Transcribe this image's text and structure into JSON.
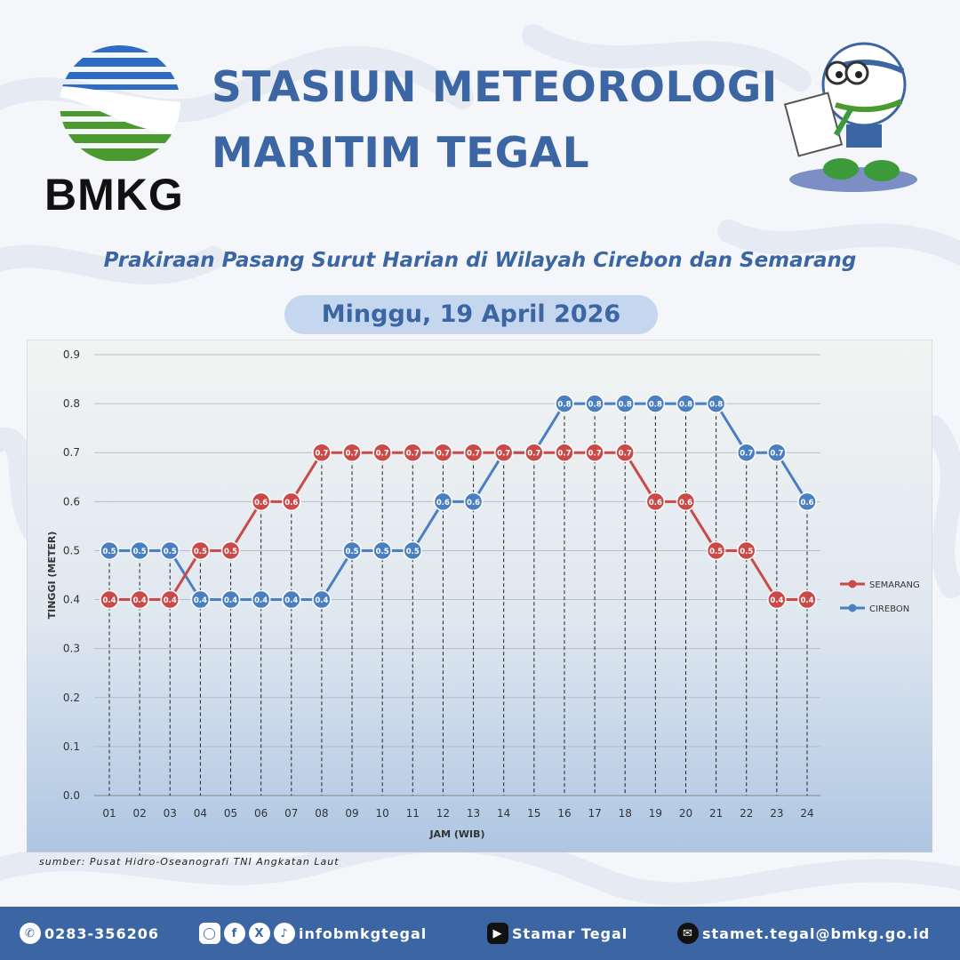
{
  "header": {
    "title_line1": "STASIUN METEOROLOGI",
    "title_line2": "MARITIM TEGAL",
    "logo_text": "BMKG"
  },
  "subtitle": "Prakiraan Pasang Surut Harian di Wilayah Cirebon dan Semarang",
  "date": "Minggu, 19 April 2026",
  "source": "sumber: Pusat Hidro-Oseanografi TNI Angkatan Laut",
  "footer": {
    "phone": "0283-356206",
    "social": "infobmkgtegal",
    "youtube": "Stamar Tegal",
    "email": "stamet.tegal@bmkg.go.id"
  },
  "colors": {
    "semarang": "#c94a48",
    "cirebon": "#4a7fc1",
    "brand": "#3b66a3"
  },
  "chart_data": {
    "type": "line",
    "xlabel": "JAM (WIB)",
    "ylabel": "TINGGI (METER)",
    "ylim": [
      0,
      0.9
    ],
    "yticks": [
      "0.0",
      "0.1",
      "0.2",
      "0.3",
      "0.4",
      "0.5",
      "0.6",
      "0.7",
      "0.8",
      "0.9"
    ],
    "categories": [
      "01",
      "02",
      "03",
      "04",
      "05",
      "06",
      "07",
      "08",
      "09",
      "10",
      "11",
      "12",
      "13",
      "14",
      "15",
      "16",
      "17",
      "18",
      "19",
      "20",
      "21",
      "22",
      "23",
      "24"
    ],
    "legend_position": "right",
    "series": [
      {
        "name": "SEMARANG",
        "color": "#c94a48",
        "values": [
          0.4,
          0.4,
          0.4,
          0.5,
          0.5,
          0.6,
          0.6,
          0.7,
          0.7,
          0.7,
          0.7,
          0.7,
          0.7,
          0.7,
          0.7,
          0.7,
          0.7,
          0.7,
          0.6,
          0.6,
          0.5,
          0.5,
          0.4,
          0.4
        ]
      },
      {
        "name": "CIREBON",
        "color": "#4a7fc1",
        "values": [
          0.5,
          0.5,
          0.5,
          0.4,
          0.4,
          0.4,
          0.4,
          0.4,
          0.5,
          0.5,
          0.5,
          0.6,
          0.6,
          0.7,
          0.7,
          0.8,
          0.8,
          0.8,
          0.8,
          0.8,
          0.8,
          0.7,
          0.7,
          0.6
        ]
      }
    ]
  }
}
